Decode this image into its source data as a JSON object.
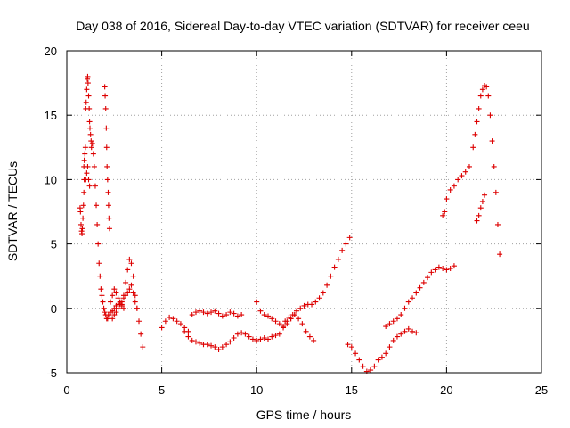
{
  "chart_data": {
    "type": "scatter",
    "title": "Day 038 of 2016, Sidereal Day-to-day VTEC variation (SDTVAR) for receiver ceeu",
    "xlabel": "GPS time / hours",
    "ylabel": "SDTVAR / TECUs",
    "xlim": [
      0,
      25
    ],
    "ylim": [
      -5,
      20
    ],
    "xticks": [
      0,
      5,
      10,
      15,
      20,
      25
    ],
    "yticks": [
      -5,
      0,
      5,
      10,
      15,
      20
    ],
    "grid": true,
    "marker": "plus",
    "color": "#dd0000",
    "series": [
      {
        "name": "s1",
        "x": [
          0.7,
          0.72,
          0.75,
          0.78,
          0.8,
          0.82,
          0.85,
          0.88,
          0.9,
          0.92
        ],
        "y": [
          7.8,
          7.5,
          6.5,
          6.0,
          5.8,
          6.2,
          7.0,
          8.0,
          9.0,
          10.0
        ]
      },
      {
        "name": "s2",
        "x": [
          0.9,
          0.92,
          0.95,
          0.98,
          1.0,
          1.02,
          1.05,
          1.08,
          1.1,
          1.12,
          1.15,
          1.18,
          1.2,
          1.22,
          1.25,
          1.28,
          1.3,
          1.35,
          1.4,
          1.45,
          1.5,
          1.55,
          1.6,
          1.65,
          1.7,
          1.75,
          1.8,
          1.85,
          1.9,
          1.95,
          2.0,
          2.05,
          2.1,
          2.15,
          2.2,
          2.3,
          2.4,
          2.5,
          2.6,
          2.7,
          2.8,
          2.9,
          3.0
        ],
        "y": [
          11.0,
          11.5,
          12.0,
          12.5,
          15.5,
          16.0,
          17.0,
          17.8,
          18.0,
          17.5,
          16.5,
          15.5,
          14.5,
          14.0,
          13.5,
          13.0,
          12.5,
          12.8,
          12.0,
          11.0,
          9.5,
          8.0,
          6.5,
          5.0,
          3.5,
          2.5,
          1.5,
          1.0,
          0.5,
          0.0,
          -0.3,
          -0.5,
          -0.8,
          -0.8,
          -0.5,
          -0.3,
          -0.2,
          0.0,
          0.2,
          0.3,
          0.4,
          0.2,
          0.0
        ]
      },
      {
        "name": "s3",
        "x": [
          1.0,
          1.05,
          1.1,
          1.15,
          1.2
        ],
        "y": [
          10.0,
          10.5,
          11.0,
          10.0,
          9.5
        ]
      },
      {
        "name": "s4",
        "x": [
          2.0,
          2.02,
          2.05,
          2.08,
          2.1,
          2.12,
          2.15,
          2.18,
          2.2,
          2.22,
          2.25
        ],
        "y": [
          17.2,
          16.5,
          15.5,
          14.0,
          12.5,
          11.0,
          10.0,
          9.0,
          8.0,
          7.0,
          6.2
        ]
      },
      {
        "name": "s5",
        "x": [
          2.2,
          2.3,
          2.4,
          2.5,
          2.6,
          2.7,
          2.8,
          2.9,
          3.0,
          3.1,
          3.2,
          3.3,
          3.4,
          3.5,
          3.6,
          3.7,
          3.8,
          3.9,
          4.0
        ],
        "y": [
          -0.5,
          0.5,
          1.0,
          1.5,
          1.2,
          0.8,
          0.5,
          0.3,
          1.0,
          2.0,
          3.0,
          3.8,
          3.5,
          2.5,
          1.0,
          0.0,
          -1.0,
          -2.0,
          -3.0
        ]
      },
      {
        "name": "s6",
        "x": [
          2.4,
          2.5,
          2.6,
          2.7,
          2.8,
          2.9,
          3.0,
          3.1,
          3.2,
          3.3,
          3.4,
          3.5,
          3.6,
          3.7
        ],
        "y": [
          -0.8,
          -0.5,
          -0.3,
          0.0,
          0.3,
          0.5,
          0.8,
          1.0,
          1.2,
          1.5,
          1.8,
          1.2,
          0.5,
          0.0
        ]
      },
      {
        "name": "s7",
        "x": [
          5.0,
          5.2,
          5.4,
          5.6,
          5.8,
          6.0,
          6.2,
          6.4,
          6.6,
          6.8,
          7.0,
          7.2,
          7.4,
          7.6,
          7.8,
          8.0,
          8.2,
          8.4,
          8.6,
          8.8,
          9.0,
          9.2
        ],
        "y": [
          -1.5,
          -1.0,
          -0.7,
          -0.8,
          -1.0,
          -1.2,
          -1.5,
          -1.8,
          -0.5,
          -0.3,
          -0.2,
          -0.3,
          -0.4,
          -0.3,
          -0.2,
          -0.4,
          -0.6,
          -0.5,
          -0.3,
          -0.4,
          -0.6,
          -0.5
        ]
      },
      {
        "name": "s8",
        "x": [
          6.2,
          6.4,
          6.6,
          6.8,
          7.0,
          7.2,
          7.4,
          7.6,
          7.8
        ],
        "y": [
          -1.8,
          -2.2,
          -2.5,
          -2.6,
          -2.7,
          -2.8,
          -2.8,
          -2.9,
          -3.0
        ]
      },
      {
        "name": "s9",
        "x": [
          8.0,
          8.2,
          8.4,
          8.6,
          8.8,
          9.0,
          9.2,
          9.4,
          9.6,
          9.8,
          10.0,
          10.2,
          10.4,
          10.6,
          10.8,
          11.0,
          11.2,
          11.4,
          11.6,
          11.8,
          12.0
        ],
        "y": [
          -3.2,
          -3.0,
          -2.8,
          -2.6,
          -2.3,
          -2.0,
          -1.9,
          -2.0,
          -2.2,
          -2.4,
          -2.5,
          -2.4,
          -2.3,
          -2.4,
          -2.2,
          -2.1,
          -2.0,
          -1.5,
          -1.0,
          -0.8,
          -0.5
        ]
      },
      {
        "name": "s10",
        "x": [
          10.0,
          10.2,
          10.4,
          10.6,
          10.8,
          11.0,
          11.2,
          11.4,
          11.6,
          11.8,
          12.0,
          12.2,
          12.4,
          12.6,
          12.8,
          13.0
        ],
        "y": [
          0.5,
          -0.2,
          -0.5,
          -0.6,
          -0.8,
          -1.0,
          -1.2,
          -1.4,
          -1.2,
          -0.8,
          -0.5,
          -0.8,
          -1.2,
          -1.8,
          -2.2,
          -2.5
        ]
      },
      {
        "name": "s11",
        "x": [
          11.5,
          11.7,
          11.9,
          12.1,
          12.3,
          12.5,
          12.7,
          12.9,
          13.1,
          13.3,
          13.5,
          13.7,
          13.9,
          14.1,
          14.3,
          14.5,
          14.7,
          14.9
        ],
        "y": [
          -1.0,
          -0.7,
          -0.5,
          -0.2,
          0.0,
          0.2,
          0.3,
          0.3,
          0.5,
          0.8,
          1.2,
          1.8,
          2.5,
          3.2,
          3.8,
          4.5,
          5.0,
          5.5
        ]
      },
      {
        "name": "s12",
        "x": [
          14.8,
          15.0,
          15.2,
          15.4,
          15.6,
          15.8,
          16.0,
          16.2,
          16.4,
          16.6,
          16.8,
          17.0,
          17.2,
          17.4,
          17.6,
          17.8,
          18.0,
          18.2,
          18.4
        ],
        "y": [
          -2.8,
          -3.0,
          -3.5,
          -4.0,
          -4.5,
          -4.9,
          -4.8,
          -4.5,
          -4.0,
          -3.8,
          -3.5,
          -3.0,
          -2.5,
          -2.2,
          -2.0,
          -1.8,
          -1.6,
          -1.8,
          -1.9
        ]
      },
      {
        "name": "s13",
        "x": [
          16.8,
          17.0,
          17.2,
          17.4,
          17.6,
          17.8,
          18.0,
          18.2,
          18.4,
          18.6,
          18.8,
          19.0,
          19.2,
          19.4,
          19.6,
          19.8,
          20.0,
          20.2,
          20.4
        ],
        "y": [
          -1.4,
          -1.2,
          -1.0,
          -0.8,
          -0.5,
          0.0,
          0.5,
          0.8,
          1.2,
          1.6,
          2.0,
          2.4,
          2.8,
          3.0,
          3.2,
          3.1,
          3.0,
          3.1,
          3.3
        ]
      },
      {
        "name": "s14",
        "x": [
          19.8,
          19.9,
          20.0,
          20.2,
          20.4,
          20.6,
          20.8,
          21.0,
          21.2,
          21.4,
          21.5,
          21.6,
          21.7,
          21.8,
          21.9,
          22.0,
          22.1,
          22.2,
          22.3,
          22.4,
          22.5,
          22.6,
          22.7,
          22.8
        ],
        "y": [
          7.2,
          7.5,
          8.5,
          9.2,
          9.5,
          10.0,
          10.3,
          10.6,
          11.0,
          12.5,
          13.5,
          14.5,
          15.5,
          16.5,
          17.0,
          17.3,
          17.2,
          16.5,
          15.0,
          13.0,
          11.0,
          9.0,
          6.5,
          4.2
        ]
      },
      {
        "name": "s15",
        "x": [
          21.6,
          21.7,
          21.8,
          21.9,
          22.0
        ],
        "y": [
          6.8,
          7.2,
          7.8,
          8.3,
          8.8
        ]
      }
    ]
  }
}
